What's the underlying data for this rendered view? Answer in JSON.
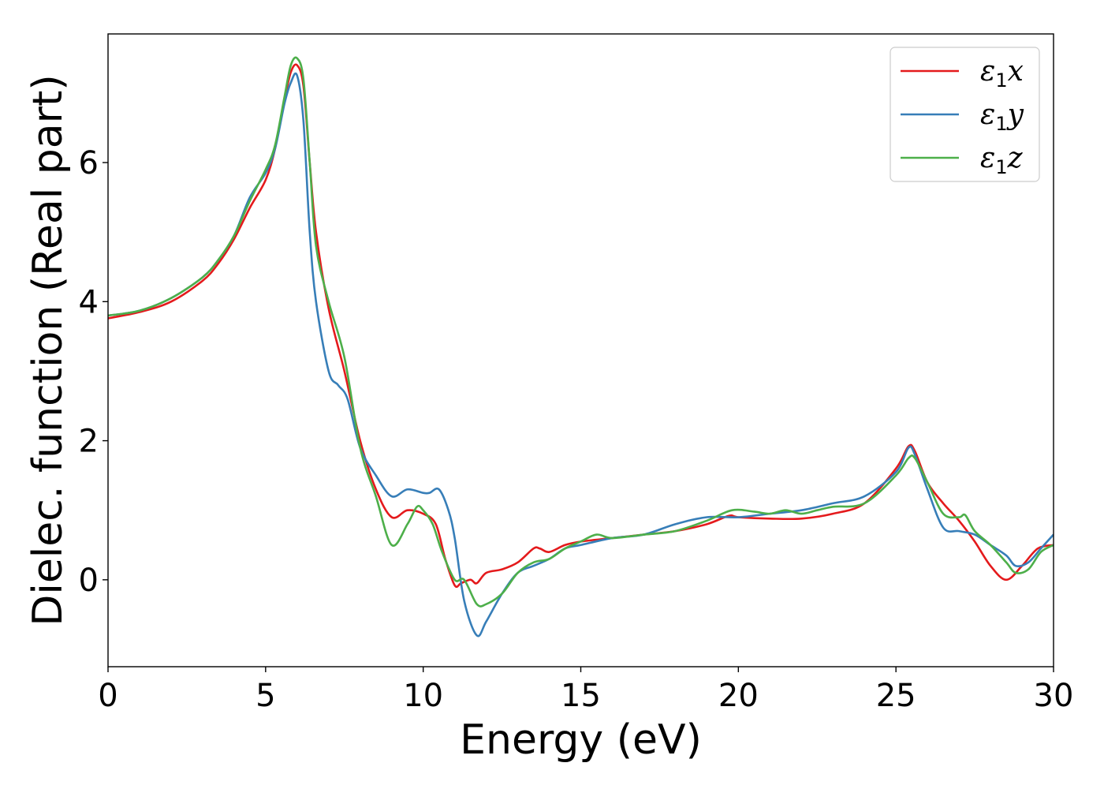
{
  "chart_data": {
    "type": "line",
    "xlabel": "Energy (eV)",
    "ylabel": "Dielec. function (Real part)",
    "xlim": [
      0,
      30
    ],
    "ylim": [
      -1.25,
      7.85
    ],
    "x_ticks": [
      0,
      5,
      10,
      15,
      20,
      25,
      30
    ],
    "y_ticks": [
      0,
      2,
      4,
      6
    ],
    "grid": false,
    "legend": "top-right",
    "series": [
      {
        "name": "ε₁x",
        "legend_main": "ε",
        "legend_sub": "1",
        "legend_suffix": "x",
        "color": "#e41a1c",
        "x": [
          0,
          1,
          2,
          3,
          3.5,
          4,
          4.5,
          5,
          5.3,
          5.6,
          5.8,
          6.0,
          6.2,
          6.4,
          6.6,
          7.0,
          7.5,
          8.0,
          8.5,
          9.0,
          9.5,
          10.0,
          10.4,
          10.7,
          11.0,
          11.2,
          11.5,
          11.7,
          12.0,
          12.5,
          13.0,
          13.5,
          13.7,
          14.0,
          14.5,
          15.0,
          16.0,
          17.0,
          18.0,
          19.0,
          19.7,
          20.0,
          21.0,
          22.0,
          23.0,
          24.0,
          25.0,
          25.4,
          25.6,
          26.0,
          26.5,
          27.0,
          27.5,
          28.0,
          28.5,
          29.0,
          29.5,
          30.0
        ],
        "y": [
          3.76,
          3.85,
          4.0,
          4.3,
          4.55,
          4.9,
          5.35,
          5.75,
          6.2,
          6.9,
          7.3,
          7.4,
          7.1,
          6.0,
          5.0,
          3.9,
          3.0,
          2.0,
          1.3,
          0.9,
          1.0,
          0.95,
          0.8,
          0.3,
          -0.08,
          -0.05,
          0.0,
          -0.05,
          0.1,
          0.15,
          0.25,
          0.45,
          0.45,
          0.4,
          0.5,
          0.55,
          0.6,
          0.65,
          0.7,
          0.8,
          0.92,
          0.9,
          0.88,
          0.88,
          0.95,
          1.1,
          1.6,
          1.92,
          1.85,
          1.4,
          1.1,
          0.85,
          0.55,
          0.2,
          0.0,
          0.2,
          0.45,
          0.5
        ]
      },
      {
        "name": "ε₁y",
        "legend_main": "ε",
        "legend_sub": "1",
        "legend_suffix": "y",
        "color": "#377eb8",
        "x": [
          0,
          1,
          2,
          3,
          3.5,
          4,
          4.5,
          5,
          5.3,
          5.6,
          5.8,
          6.0,
          6.2,
          6.4,
          6.6,
          7.0,
          7.3,
          7.6,
          8.0,
          8.5,
          9.0,
          9.5,
          10.0,
          10.2,
          10.5,
          10.8,
          11.0,
          11.3,
          11.7,
          12.0,
          12.5,
          13.0,
          13.5,
          14.0,
          14.5,
          15.0,
          16.0,
          17.0,
          18.0,
          19.0,
          20.0,
          21.0,
          22.0,
          23.0,
          24.0,
          25.0,
          25.4,
          25.6,
          26.0,
          26.5,
          27.0,
          27.5,
          28.0,
          28.5,
          28.8,
          29.2,
          29.6,
          30.0
        ],
        "y": [
          3.8,
          3.87,
          4.05,
          4.35,
          4.6,
          4.95,
          5.5,
          5.85,
          6.2,
          6.85,
          7.15,
          7.25,
          6.6,
          5.0,
          4.0,
          3.0,
          2.8,
          2.6,
          1.9,
          1.5,
          1.2,
          1.3,
          1.25,
          1.25,
          1.3,
          1.0,
          0.6,
          -0.3,
          -0.8,
          -0.6,
          -0.2,
          0.1,
          0.2,
          0.3,
          0.45,
          0.5,
          0.6,
          0.65,
          0.8,
          0.9,
          0.9,
          0.95,
          1.0,
          1.1,
          1.2,
          1.55,
          1.9,
          1.8,
          1.3,
          0.75,
          0.7,
          0.65,
          0.5,
          0.35,
          0.2,
          0.25,
          0.45,
          0.65
        ]
      },
      {
        "name": "ε₁z",
        "legend_main": "ε",
        "legend_sub": "1",
        "legend_suffix": "z",
        "color": "#4daf4a",
        "x": [
          0,
          1,
          2,
          3,
          3.5,
          4,
          4.5,
          5,
          5.3,
          5.6,
          5.8,
          6.0,
          6.2,
          6.4,
          6.6,
          7.0,
          7.5,
          8.0,
          8.5,
          9.0,
          9.5,
          9.8,
          10.0,
          10.3,
          10.6,
          11.0,
          11.3,
          11.7,
          12.0,
          12.5,
          13.0,
          13.5,
          14.0,
          14.5,
          15.0,
          15.5,
          16.0,
          17.0,
          18.0,
          19.0,
          19.8,
          20.5,
          21.0,
          21.5,
          22.0,
          22.5,
          23.0,
          24.0,
          25.0,
          25.4,
          25.6,
          26.0,
          26.5,
          27.0,
          27.2,
          27.5,
          28.0,
          28.5,
          28.8,
          29.2,
          29.6,
          30.0
        ],
        "y": [
          3.8,
          3.87,
          4.05,
          4.35,
          4.6,
          4.95,
          5.45,
          5.9,
          6.25,
          6.95,
          7.4,
          7.5,
          7.2,
          6.0,
          4.8,
          4.0,
          3.2,
          1.9,
          1.2,
          0.5,
          0.8,
          1.05,
          1.0,
          0.8,
          0.4,
          0.0,
          0.0,
          -0.35,
          -0.35,
          -0.2,
          0.1,
          0.25,
          0.3,
          0.45,
          0.55,
          0.65,
          0.6,
          0.65,
          0.7,
          0.85,
          1.0,
          0.98,
          0.95,
          1.0,
          0.95,
          1.0,
          1.05,
          1.1,
          1.5,
          1.75,
          1.75,
          1.4,
          0.95,
          0.9,
          0.93,
          0.7,
          0.5,
          0.25,
          0.1,
          0.15,
          0.4,
          0.5
        ]
      }
    ]
  }
}
